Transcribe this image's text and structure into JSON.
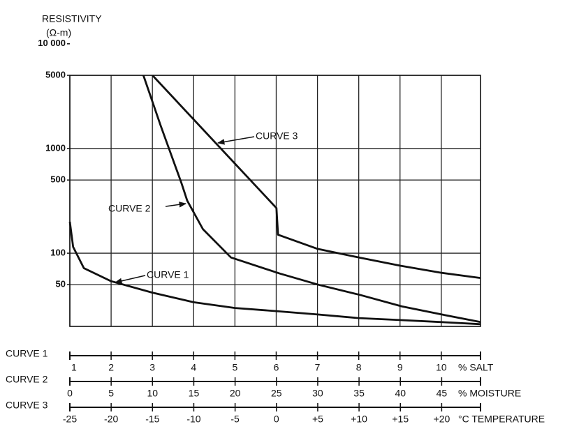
{
  "chart_data": {
    "type": "line",
    "ylabel": "RESISTIVITY",
    "yunit": "(Ω-m)",
    "ylog": true,
    "ylim": [
      20,
      5000
    ],
    "yticks": [
      {
        "value": 10000,
        "label": "10 000"
      },
      5000,
      1000,
      500,
      100,
      50
    ],
    "grid": true,
    "series": [
      {
        "name": "CURVE 1",
        "color": "#111111",
        "xlabel": "% SALT",
        "xlim": [
          1,
          10.95
        ],
        "xticks": [
          1,
          2,
          3,
          4,
          5,
          6,
          7,
          8,
          9,
          10
        ],
        "x": [
          1,
          1.08,
          1.34,
          2,
          3,
          4,
          5,
          6,
          7,
          8,
          9,
          10,
          10.95
        ],
        "values": [
          200,
          115,
          72,
          54,
          42,
          34,
          30,
          28,
          26,
          24,
          23,
          22,
          21
        ]
      },
      {
        "name": "CURVE 2",
        "color": "#111111",
        "xlabel": "% MOISTURE",
        "xlim": [
          0,
          49.7
        ],
        "xticks": [
          0,
          5,
          10,
          15,
          20,
          25,
          30,
          35,
          40,
          45
        ],
        "x": [
          8.9,
          11,
          13.5,
          14.2,
          16.1,
          19.5,
          25.4,
          30.1,
          35.1,
          40.2,
          45,
          49.7
        ],
        "values": [
          5000,
          1650,
          470,
          318,
          170,
          91,
          64,
          50,
          40,
          31,
          26,
          22
        ]
      },
      {
        "name": "CURVE 3",
        "color": "#111111",
        "xlabel": "°C TEMPERATURE",
        "xlim": [
          -25,
          24.7
        ],
        "xticks": [
          -25,
          -20,
          -15,
          -10,
          -5,
          0,
          {
            "value": 5,
            "label": "+5"
          },
          {
            "value": 10,
            "label": "+10"
          },
          {
            "value": 15,
            "label": "+15"
          },
          {
            "value": 20,
            "label": "+20"
          }
        ],
        "x": [
          -15,
          0,
          0.2,
          5,
          10,
          15,
          20,
          24.7
        ],
        "values": [
          5000,
          270,
          150,
          110,
          91,
          76,
          65,
          58
        ]
      }
    ]
  }
}
